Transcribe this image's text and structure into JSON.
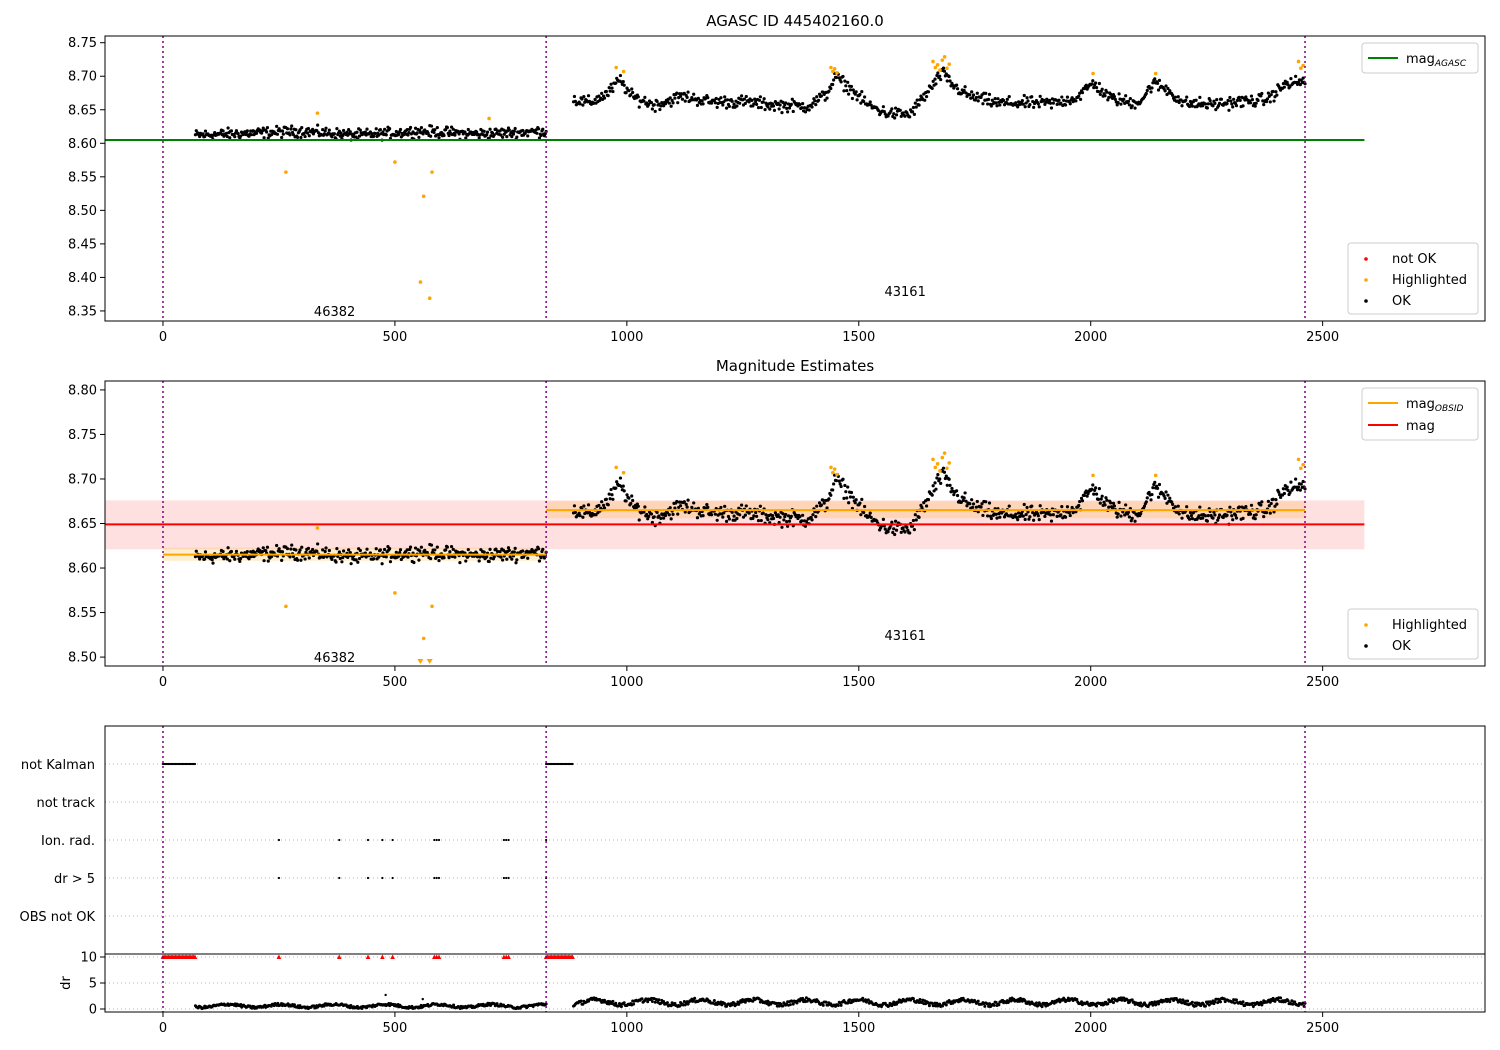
{
  "colors": {
    "ok": "#000000",
    "highlighted": "#ffa500",
    "not_ok": "#ff0000",
    "agasc_line": "#008000",
    "obsid_line": "#ffa500",
    "mag_line": "#ff0000",
    "obs_boundary": "#800080",
    "grid": "#b0b0b0"
  },
  "chart_data": [
    {
      "type": "scatter",
      "title": "AGASC ID 445402160.0",
      "xlim": [
        -125,
        2850
      ],
      "ylim": [
        8.335,
        8.76
      ],
      "xticks": [
        0,
        500,
        1000,
        1500,
        2000,
        2500
      ],
      "yticks": [
        8.35,
        8.4,
        8.45,
        8.5,
        8.55,
        8.6,
        8.65,
        8.7,
        8.75
      ],
      "ytick_labels": [
        "8.35",
        "8.40",
        "8.45",
        "8.50",
        "8.55",
        "8.60",
        "8.65",
        "8.70",
        "8.75"
      ],
      "obs_boundaries": [
        0,
        826,
        2462
      ],
      "obs_labels": [
        {
          "text": "46382",
          "x": 370,
          "y": 8.35
        },
        {
          "text": "43161",
          "x": 1600,
          "y": 8.38
        }
      ],
      "lines": [
        {
          "name": "mag_AGASC",
          "label_main": "mag",
          "label_sub": "AGASC",
          "x": [
            -125,
            2590
          ],
          "y": [
            8.605,
            8.605
          ],
          "color": "#008000"
        }
      ],
      "legend_top": {
        "placement": "top-right",
        "entries": [
          {
            "label": "mag",
            "sub": "AGASC",
            "color": "#008000"
          }
        ]
      },
      "legend_bottom": {
        "placement": "bottom-right",
        "entries": [
          {
            "label": "not OK",
            "color": "#ff0000"
          },
          {
            "label": "Highlighted",
            "color": "#ffa500"
          },
          {
            "label": "OK",
            "color": "#000000"
          }
        ]
      },
      "highlighted_points": {
        "x": [
          265,
          333,
          500,
          555,
          562,
          575,
          580,
          703,
          977,
          993,
          1440,
          1444,
          1448,
          1453,
          1660,
          1665,
          1670,
          1675,
          1680,
          1685,
          1690,
          1695,
          2005,
          2140,
          2448,
          2453,
          2458
        ],
        "y": [
          8.557,
          8.645,
          8.572,
          8.393,
          8.521,
          8.369,
          8.557,
          8.637,
          8.713,
          8.707,
          8.713,
          8.707,
          8.711,
          8.705,
          8.722,
          8.713,
          8.717,
          8.709,
          8.724,
          8.729,
          8.712,
          8.718,
          8.704,
          8.704,
          8.722,
          8.712,
          8.716
        ]
      },
      "ok_segments": [
        {
          "x_start": 70,
          "x_end": 826,
          "base": [
            [
              70,
              8.612
            ],
            [
              300,
              8.618
            ],
            [
              420,
              8.612
            ],
            [
              550,
              8.618
            ],
            [
              680,
              8.614
            ],
            [
              826,
              8.618
            ]
          ],
          "amp": 0.008,
          "n": 420
        },
        {
          "x_start": 885,
          "x_end": 2462,
          "base": [
            [
              885,
              8.665
            ],
            [
              920,
              8.66
            ],
            [
              960,
              8.675
            ],
            [
              985,
              8.695
            ],
            [
              1010,
              8.67
            ],
            [
              1060,
              8.657
            ],
            [
              1120,
              8.67
            ],
            [
              1180,
              8.662
            ],
            [
              1250,
              8.662
            ],
            [
              1320,
              8.657
            ],
            [
              1390,
              8.655
            ],
            [
              1430,
              8.673
            ],
            [
              1450,
              8.7
            ],
            [
              1480,
              8.682
            ],
            [
              1520,
              8.657
            ],
            [
              1560,
              8.645
            ],
            [
              1610,
              8.643
            ],
            [
              1645,
              8.673
            ],
            [
              1680,
              8.705
            ],
            [
              1705,
              8.685
            ],
            [
              1740,
              8.67
            ],
            [
              1800,
              8.66
            ],
            [
              1860,
              8.66
            ],
            [
              1920,
              8.66
            ],
            [
              1970,
              8.668
            ],
            [
              2005,
              8.69
            ],
            [
              2040,
              8.668
            ],
            [
              2090,
              8.66
            ],
            [
              2110,
              8.665
            ],
            [
              2135,
              8.69
            ],
            [
              2165,
              8.68
            ],
            [
              2200,
              8.66
            ],
            [
              2260,
              8.658
            ],
            [
              2320,
              8.662
            ],
            [
              2380,
              8.665
            ],
            [
              2420,
              8.688
            ],
            [
              2462,
              8.693
            ]
          ],
          "amp": 0.009,
          "n": 780
        }
      ]
    },
    {
      "type": "scatter",
      "title": "Magnitude Estimates",
      "xlim": [
        -125,
        2850
      ],
      "ylim": [
        8.49,
        8.81
      ],
      "xticks": [
        0,
        500,
        1000,
        1500,
        2000,
        2500
      ],
      "yticks": [
        8.5,
        8.55,
        8.6,
        8.65,
        8.7,
        8.75,
        8.8
      ],
      "ytick_labels": [
        "8.50",
        "8.55",
        "8.60",
        "8.65",
        "8.70",
        "8.75",
        "8.80"
      ],
      "obs_boundaries": [
        0,
        826,
        2462
      ],
      "obs_labels": [
        {
          "text": "46382",
          "x": 370,
          "y": 8.5
        },
        {
          "text": "43161",
          "x": 1600,
          "y": 8.525
        }
      ],
      "bands": [
        {
          "name": "mag",
          "x": [
            -125,
            2590
          ],
          "y_low": 8.621,
          "y_high": 8.676,
          "color": "#ff0000",
          "opacity": 0.12
        },
        {
          "name": "mag_OBSID_46382",
          "x": [
            0,
            826
          ],
          "y_low": 8.608,
          "y_high": 8.623,
          "color": "#ffa500",
          "opacity": 0.18
        },
        {
          "name": "mag_OBSID_43161",
          "x": [
            826,
            2462
          ],
          "y_low": 8.656,
          "y_high": 8.675,
          "color": "#ffa500",
          "opacity": 0.18
        }
      ],
      "lines": [
        {
          "name": "mag_OBSID_46382",
          "x": [
            0,
            826
          ],
          "y": [
            8.615,
            8.615
          ],
          "color": "#ffa500"
        },
        {
          "name": "mag_OBSID_43161",
          "x": [
            826,
            2462
          ],
          "y": [
            8.665,
            8.665
          ],
          "color": "#ffa500"
        },
        {
          "name": "mag",
          "x": [
            -125,
            2590
          ],
          "y": [
            8.649,
            8.649
          ],
          "color": "#ff0000"
        }
      ],
      "legend_top": {
        "placement": "top-right",
        "entries": [
          {
            "label": "mag",
            "sub": "OBSID",
            "color": "#ffa500"
          },
          {
            "label": "mag",
            "sub": "",
            "color": "#ff0000"
          }
        ]
      },
      "legend_bottom": {
        "placement": "bottom-right",
        "entries": [
          {
            "label": "Highlighted",
            "color": "#ffa500"
          },
          {
            "label": "OK",
            "color": "#000000"
          }
        ]
      },
      "highlighted_points": {
        "x": [
          265,
          333,
          500,
          580,
          977,
          993,
          1440,
          1444,
          1448,
          1453,
          1660,
          1665,
          1670,
          1675,
          1680,
          1685,
          1690,
          1695,
          2005,
          2140,
          2448,
          2453,
          2458
        ],
        "y": [
          8.557,
          8.645,
          8.572,
          8.557,
          8.713,
          8.707,
          8.713,
          8.707,
          8.711,
          8.705,
          8.722,
          8.713,
          8.717,
          8.709,
          8.724,
          8.729,
          8.712,
          8.718,
          8.704,
          8.704,
          8.722,
          8.712,
          8.716
        ]
      },
      "below_range_points": {
        "x": [
          555,
          562,
          575
        ],
        "y": [
          8.492,
          8.521,
          8.492
        ]
      },
      "ok_segments": "same_as_panel_1"
    },
    {
      "type": "scatter",
      "title": "",
      "xlim": [
        -125,
        2850
      ],
      "xticks": [
        0,
        500,
        1000,
        1500,
        2000,
        2500
      ],
      "obs_boundaries": [
        0,
        826,
        2462
      ],
      "flag_rows": [
        "not Kalman",
        "not track",
        "Ion. rad.",
        "dr > 5",
        "OBS not OK"
      ],
      "flags": {
        "not Kalman": {
          "ranges": [
            [
              0,
              70
            ],
            [
              826,
              885
            ]
          ],
          "points": []
        },
        "not track": {
          "ranges": [],
          "points": []
        },
        "Ion. rad.": {
          "ranges": [],
          "points": [
            250,
            380,
            442,
            473,
            495,
            585,
            590,
            595,
            735,
            740,
            745,
            826
          ]
        },
        "dr > 5": {
          "ranges": [],
          "points": [
            250,
            380,
            442,
            473,
            495,
            585,
            590,
            595,
            735,
            740,
            745,
            826
          ]
        },
        "OBS not OK": {
          "ranges": [],
          "points": []
        }
      },
      "dr": {
        "ylabel": "dr",
        "yticks": [
          0,
          5,
          10
        ],
        "ylim": [
          -1,
          11
        ],
        "clipped_value": 10,
        "clipped_ranges": [
          [
            0,
            70
          ],
          [
            826,
            885
          ]
        ],
        "clipped_points": [
          250,
          380,
          442,
          473,
          495,
          585,
          590,
          595,
          735,
          740,
          745
        ],
        "segments": [
          {
            "x_start": 70,
            "x_end": 826,
            "base": 0.6,
            "amp": 0.5,
            "n": 380
          },
          {
            "x_start": 885,
            "x_end": 2462,
            "base": 1.3,
            "amp": 0.8,
            "n": 780
          }
        ],
        "outliers": {
          "x": [
            480,
            560
          ],
          "y": [
            2.7,
            1.9
          ]
        }
      }
    }
  ]
}
